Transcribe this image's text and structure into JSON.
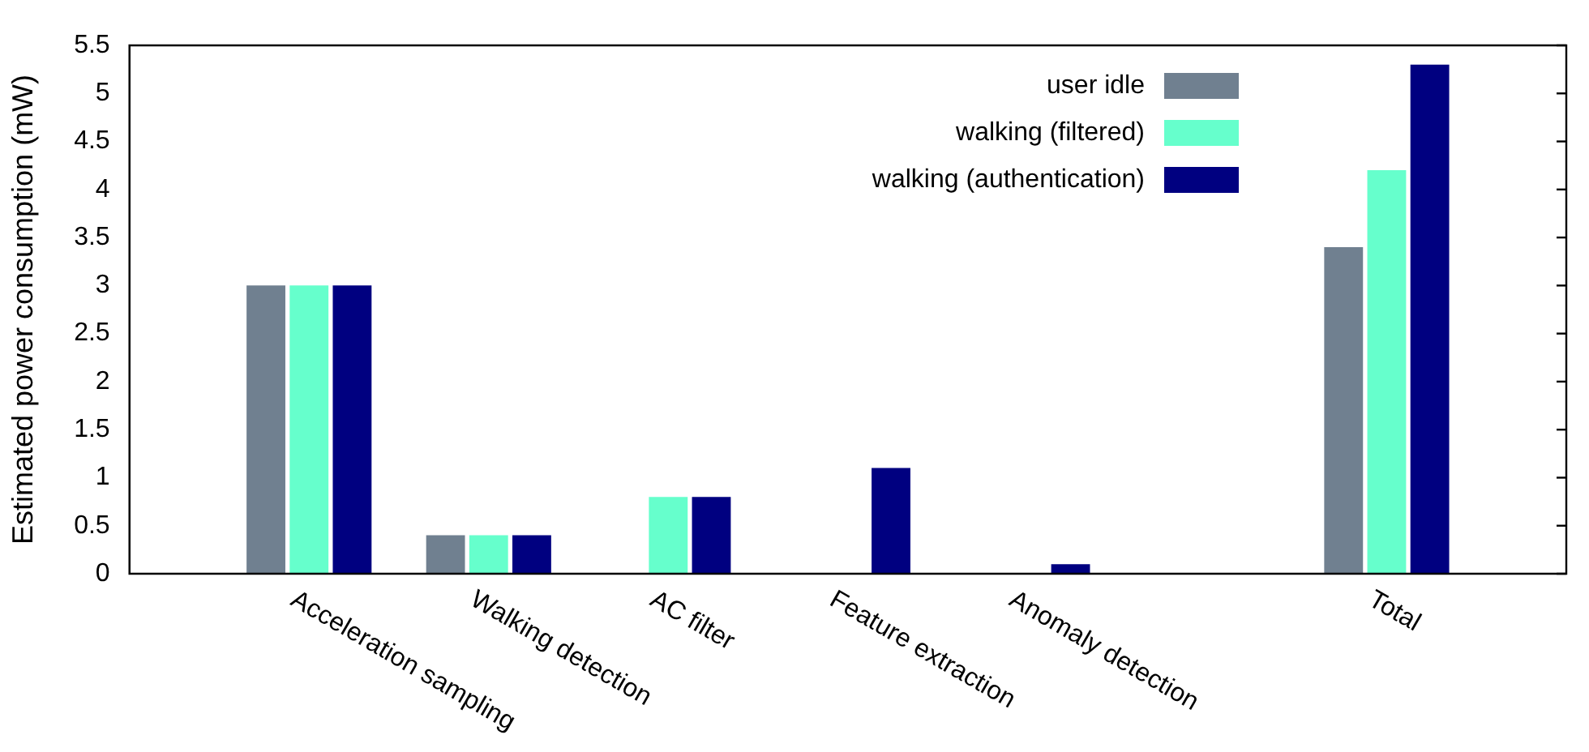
{
  "chart_data": {
    "type": "bar",
    "ylabel": "Estimated power consumption (mW)",
    "categories": [
      null,
      "Acceleration sampling",
      "Walking detection",
      "AC filter",
      "Feature extraction",
      "Anomaly detection",
      null,
      "Total",
      null
    ],
    "series": [
      {
        "name": "user idle",
        "color": "#708090",
        "values": [
          null,
          3,
          0.4,
          null,
          null,
          null,
          null,
          3.4,
          null
        ]
      },
      {
        "name": "walking (filtered)",
        "color": "#66ffcc",
        "values": [
          null,
          3,
          0.4,
          0.8,
          null,
          null,
          null,
          4.2,
          null
        ]
      },
      {
        "name": "walking (authentication)",
        "color": "#000080",
        "values": [
          null,
          3,
          0.4,
          0.8,
          1.1,
          0.1,
          null,
          5.3,
          null
        ]
      }
    ],
    "ylim": [
      0,
      5.5
    ],
    "yticks": [
      0,
      0.5,
      1,
      1.5,
      2,
      2.5,
      3,
      3.5,
      4,
      4.5,
      5,
      5.5
    ],
    "grid": false,
    "legend": "top right"
  }
}
